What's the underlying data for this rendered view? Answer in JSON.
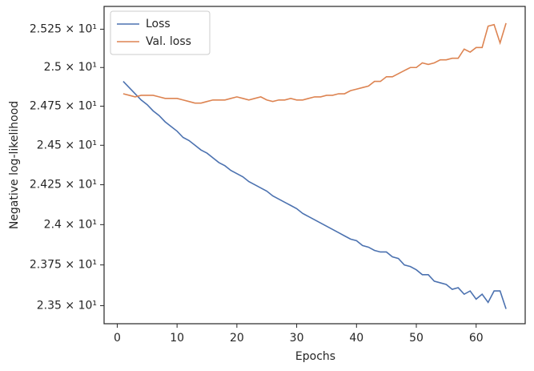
{
  "chart_data": {
    "type": "line",
    "xlabel": "Epochs",
    "ylabel": "Negative log-likelihood",
    "x": [
      1,
      2,
      3,
      4,
      5,
      6,
      7,
      8,
      9,
      10,
      11,
      12,
      13,
      14,
      15,
      16,
      17,
      18,
      19,
      20,
      21,
      22,
      23,
      24,
      25,
      26,
      27,
      28,
      29,
      30,
      31,
      32,
      33,
      34,
      35,
      36,
      37,
      38,
      39,
      40,
      41,
      42,
      43,
      44,
      45,
      46,
      47,
      48,
      49,
      50,
      51,
      52,
      53,
      54,
      55,
      56,
      57,
      58,
      59,
      60,
      61,
      62,
      63,
      64,
      65
    ],
    "series": [
      {
        "name": "Loss",
        "color": "#4c72b0",
        "values": [
          24.91,
          24.87,
          24.83,
          24.79,
          24.76,
          24.72,
          24.69,
          24.65,
          24.62,
          24.59,
          24.55,
          24.53,
          24.5,
          24.47,
          24.45,
          24.42,
          24.39,
          24.37,
          24.34,
          24.32,
          24.3,
          24.27,
          24.25,
          24.23,
          24.21,
          24.18,
          24.16,
          24.14,
          24.12,
          24.1,
          24.07,
          24.05,
          24.03,
          24.01,
          23.99,
          23.97,
          23.95,
          23.93,
          23.91,
          23.9,
          23.87,
          23.86,
          23.84,
          23.83,
          23.83,
          23.8,
          23.79,
          23.75,
          23.74,
          23.72,
          23.69,
          23.69,
          23.65,
          23.64,
          23.63,
          23.6,
          23.61,
          23.57,
          23.59,
          23.54,
          23.57,
          23.52,
          23.59,
          23.59,
          23.48
        ]
      },
      {
        "name": "Val. loss",
        "color": "#dd8452",
        "values": [
          24.83,
          24.82,
          24.81,
          24.82,
          24.82,
          24.82,
          24.81,
          24.8,
          24.8,
          24.8,
          24.79,
          24.78,
          24.77,
          24.77,
          24.78,
          24.79,
          24.79,
          24.79,
          24.8,
          24.81,
          24.8,
          24.79,
          24.8,
          24.81,
          24.79,
          24.78,
          24.79,
          24.79,
          24.8,
          24.79,
          24.79,
          24.8,
          24.81,
          24.81,
          24.82,
          24.82,
          24.83,
          24.83,
          24.85,
          24.86,
          24.87,
          24.88,
          24.91,
          24.91,
          24.94,
          24.94,
          24.96,
          24.98,
          25.0,
          25.0,
          25.03,
          25.02,
          25.03,
          25.05,
          25.05,
          25.06,
          25.06,
          25.12,
          25.1,
          25.13,
          25.13,
          25.27,
          25.28,
          25.16,
          25.29
        ]
      }
    ],
    "xlim": [
      -2.2,
      68.2
    ],
    "xticks": [
      0,
      10,
      20,
      30,
      40,
      50,
      60
    ],
    "ylim": [
      23.39,
      25.4
    ],
    "yscale": "log",
    "yticks": [
      {
        "value": 23.5,
        "label": "2.35 × 10¹"
      },
      {
        "value": 23.75,
        "label": "2.375 × 10¹"
      },
      {
        "value": 24,
        "label": "2.4 × 10¹"
      },
      {
        "value": 24.25,
        "label": "2.425 × 10¹"
      },
      {
        "value": 24.5,
        "label": "2.45 × 10¹"
      },
      {
        "value": 24.75,
        "label": "2.475 × 10¹"
      },
      {
        "value": 25,
        "label": "2.5 × 10¹"
      },
      {
        "value": 25.25,
        "label": "2.525 × 10¹"
      }
    ],
    "legend": "upper left",
    "grid": false
  }
}
